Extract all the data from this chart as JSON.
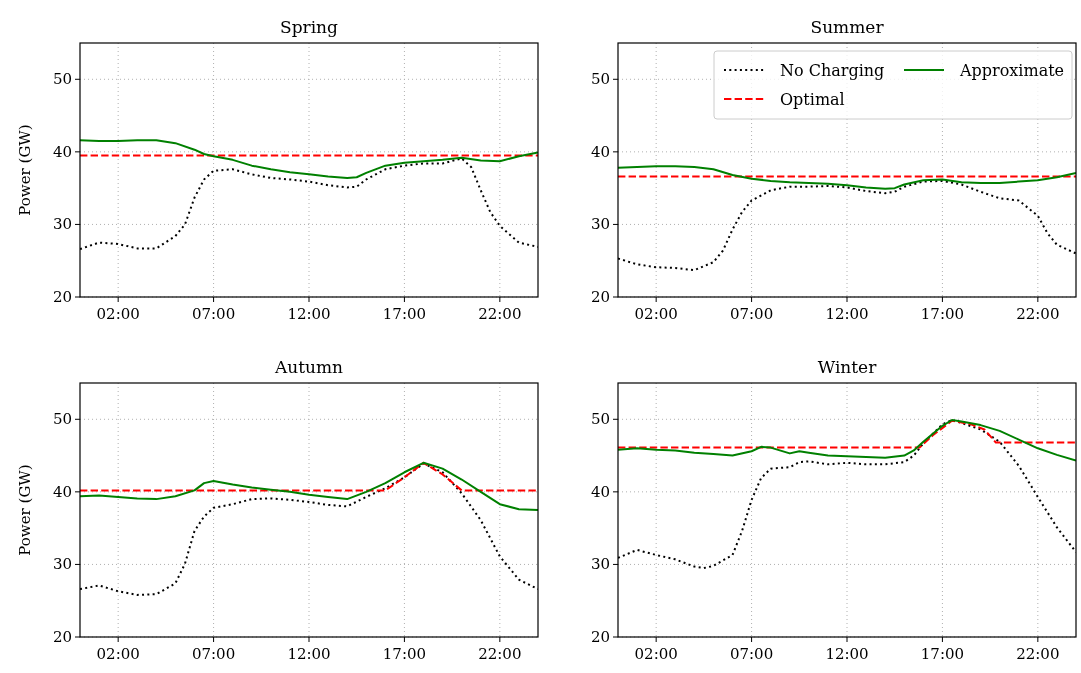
{
  "chart_data": [
    {
      "type": "line",
      "title": "Spring",
      "ylabel": "Power (GW)",
      "xlim": [
        0,
        24
      ],
      "ylim": [
        20,
        55
      ],
      "xticks": [
        {
          "value": 2,
          "label": "02:00"
        },
        {
          "value": 7,
          "label": "07:00"
        },
        {
          "value": 12,
          "label": "12:00"
        },
        {
          "value": 17,
          "label": "17:00"
        },
        {
          "value": 22,
          "label": "22:00"
        }
      ],
      "yticks": [
        20,
        30,
        40,
        50
      ],
      "grid": true,
      "legend": false,
      "series": [
        {
          "color": "#000000",
          "line_style": "dotted",
          "x": [
            0,
            1,
            2,
            3,
            4,
            5,
            5.5,
            6,
            6.5,
            7,
            8,
            9,
            10,
            11,
            12,
            13,
            14,
            14.5,
            15,
            16,
            17,
            18,
            19,
            20,
            20.5,
            21,
            21.5,
            22,
            23,
            24
          ],
          "values": [
            26.6,
            27.5,
            27.3,
            26.7,
            26.7,
            28.4,
            30,
            33.7,
            36.2,
            37.4,
            37.6,
            36.9,
            36.4,
            36.2,
            35.9,
            35.4,
            35.1,
            35.2,
            36.2,
            37.6,
            38.1,
            38.4,
            38.4,
            39.1,
            37.9,
            34.7,
            31.7,
            29.8,
            27.5,
            26.9
          ]
        },
        {
          "color": "#ff0000",
          "line_style": "dashed",
          "x": [
            0,
            24
          ],
          "values": [
            39.5,
            39.5
          ]
        },
        {
          "color": "#008000",
          "line_style": "solid",
          "x": [
            0,
            1,
            2,
            3,
            4,
            5,
            6,
            6.5,
            7,
            8,
            9,
            10,
            11,
            12,
            13,
            14,
            14.5,
            15,
            16,
            17,
            18,
            19,
            20,
            21,
            22,
            23,
            24
          ],
          "values": [
            41.6,
            41.5,
            41.5,
            41.6,
            41.6,
            41.2,
            40.3,
            39.7,
            39.4,
            38.9,
            38.1,
            37.6,
            37.2,
            36.9,
            36.6,
            36.4,
            36.5,
            37.1,
            38.1,
            38.5,
            38.7,
            38.9,
            39.2,
            38.8,
            38.7,
            39.4,
            39.9
          ]
        }
      ]
    },
    {
      "type": "line",
      "title": "Summer",
      "xlim": [
        0,
        24
      ],
      "ylim": [
        20,
        55
      ],
      "xticks": [
        {
          "value": 2,
          "label": "02:00"
        },
        {
          "value": 7,
          "label": "07:00"
        },
        {
          "value": 12,
          "label": "12:00"
        },
        {
          "value": 17,
          "label": "17:00"
        },
        {
          "value": 22,
          "label": "22:00"
        }
      ],
      "yticks": [
        20,
        30,
        40,
        50
      ],
      "grid": true,
      "legend": "top right",
      "series": [
        {
          "name": "No Charging",
          "color": "#000000",
          "line_style": "dotted",
          "x": [
            0,
            1,
            2,
            3,
            4,
            5,
            5.5,
            6,
            6.5,
            7,
            8,
            9,
            10,
            11,
            12,
            13,
            14,
            14.5,
            15,
            16,
            17,
            18,
            19,
            20,
            21,
            22,
            22.5,
            23,
            24
          ],
          "values": [
            25.3,
            24.5,
            24.1,
            24.0,
            23.7,
            24.8,
            26.4,
            29.3,
            31.7,
            33.3,
            34.7,
            35.2,
            35.2,
            35.3,
            35.1,
            34.6,
            34.3,
            34.5,
            35.2,
            35.9,
            36.0,
            35.5,
            34.5,
            33.6,
            33.3,
            31.2,
            28.8,
            27.2,
            26.0
          ]
        },
        {
          "name": "Optimal",
          "color": "#ff0000",
          "line_style": "dashed",
          "x": [
            0,
            24
          ],
          "values": [
            36.6,
            36.6
          ]
        },
        {
          "name": "Approximate",
          "color": "#008000",
          "line_style": "solid",
          "x": [
            0,
            1,
            2,
            3,
            4,
            5,
            6,
            7,
            8,
            9,
            10,
            11,
            12,
            13,
            14,
            14.5,
            15,
            16,
            17,
            18,
            19,
            20,
            21,
            22,
            23,
            24
          ],
          "values": [
            37.8,
            37.9,
            38.0,
            38.0,
            37.9,
            37.6,
            36.8,
            36.3,
            36.0,
            35.8,
            35.7,
            35.6,
            35.4,
            35.1,
            34.9,
            35.0,
            35.5,
            36.1,
            36.2,
            35.8,
            35.7,
            35.7,
            35.9,
            36.1,
            36.5,
            37.1
          ]
        }
      ]
    },
    {
      "type": "line",
      "title": "Autumn",
      "ylabel": "Power (GW)",
      "xlim": [
        0,
        24
      ],
      "ylim": [
        20,
        55
      ],
      "xticks": [
        {
          "value": 2,
          "label": "02:00"
        },
        {
          "value": 7,
          "label": "07:00"
        },
        {
          "value": 12,
          "label": "12:00"
        },
        {
          "value": 17,
          "label": "17:00"
        },
        {
          "value": 22,
          "label": "22:00"
        }
      ],
      "yticks": [
        20,
        30,
        40,
        50
      ],
      "grid": true,
      "legend": false,
      "series": [
        {
          "color": "#000000",
          "line_style": "dotted",
          "x": [
            0,
            1,
            2,
            3,
            4,
            5,
            5.5,
            6,
            6.5,
            7,
            8,
            9,
            10,
            11,
            12,
            13,
            14,
            15,
            16,
            17,
            18,
            19,
            20,
            21,
            22,
            23,
            24
          ],
          "values": [
            26.6,
            27.1,
            26.3,
            25.8,
            25.9,
            27.4,
            30.1,
            34.6,
            36.6,
            37.8,
            38.3,
            39.0,
            39.1,
            38.9,
            38.6,
            38.2,
            38.0,
            39.3,
            40.5,
            42.0,
            43.9,
            42.7,
            39.8,
            36.1,
            31.1,
            27.9,
            26.6
          ]
        },
        {
          "color": "#ff0000",
          "line_style": "dashed",
          "x": [
            0,
            16,
            17,
            18,
            19,
            20,
            24
          ],
          "values": [
            40.2,
            40.2,
            42.0,
            44.0,
            42.4,
            40.2,
            40.2
          ]
        },
        {
          "color": "#008000",
          "line_style": "solid",
          "x": [
            0,
            1,
            2,
            3,
            4,
            5,
            6,
            6.5,
            7,
            8,
            9,
            10,
            11,
            12,
            13,
            14,
            15,
            16,
            17,
            18,
            19,
            20,
            21,
            22,
            23,
            24
          ],
          "values": [
            39.4,
            39.5,
            39.3,
            39.1,
            39.0,
            39.4,
            40.2,
            41.2,
            41.5,
            41.0,
            40.6,
            40.3,
            40.0,
            39.6,
            39.3,
            39.0,
            40.0,
            41.2,
            42.7,
            44.0,
            43.2,
            41.7,
            40.0,
            38.3,
            37.6,
            37.5
          ]
        }
      ]
    },
    {
      "type": "line",
      "title": "Winter",
      "xlim": [
        0,
        24
      ],
      "ylim": [
        20,
        55
      ],
      "xticks": [
        {
          "value": 2,
          "label": "02:00"
        },
        {
          "value": 7,
          "label": "07:00"
        },
        {
          "value": 12,
          "label": "12:00"
        },
        {
          "value": 17,
          "label": "17:00"
        },
        {
          "value": 22,
          "label": "22:00"
        }
      ],
      "yticks": [
        20,
        30,
        40,
        50
      ],
      "grid": true,
      "legend": false,
      "series": [
        {
          "color": "#000000",
          "line_style": "dotted",
          "x": [
            0,
            1,
            2,
            3,
            4,
            4.5,
            5,
            6,
            6.5,
            7,
            7.5,
            8,
            9,
            9.5,
            10,
            11,
            12,
            13,
            14,
            15,
            15.5,
            16,
            17,
            17.5,
            18,
            19,
            20,
            21,
            22,
            23,
            24
          ],
          "values": [
            30.9,
            32.0,
            31.3,
            30.7,
            29.7,
            29.5,
            29.8,
            31.3,
            34.6,
            38.9,
            41.9,
            43.2,
            43.4,
            44.1,
            44.2,
            43.8,
            44.0,
            43.8,
            43.8,
            44.1,
            45.0,
            46.7,
            49.3,
            49.9,
            49.5,
            48.6,
            46.9,
            43.6,
            39.3,
            35.1,
            31.7
          ]
        },
        {
          "color": "#ff0000",
          "line_style": "dashed",
          "x": [
            0,
            15.8,
            16.5,
            17.5,
            18.5,
            19.2,
            19.8,
            24
          ],
          "values": [
            46.1,
            46.1,
            47.8,
            49.8,
            49.3,
            48.6,
            46.8,
            46.8
          ]
        },
        {
          "color": "#008000",
          "line_style": "solid",
          "x": [
            0,
            1,
            2,
            3,
            4,
            5,
            6,
            7,
            7.5,
            8,
            9,
            9.5,
            10,
            11,
            12,
            13,
            14,
            15,
            15.5,
            16,
            17,
            17.5,
            18,
            19,
            20,
            21,
            22,
            23,
            24
          ],
          "values": [
            45.8,
            46.0,
            45.8,
            45.7,
            45.4,
            45.2,
            45.0,
            45.6,
            46.2,
            46.1,
            45.3,
            45.6,
            45.4,
            45.0,
            44.9,
            44.8,
            44.7,
            45.0,
            45.7,
            46.9,
            49.1,
            49.9,
            49.7,
            49.2,
            48.4,
            47.2,
            46.0,
            45.1,
            44.3
          ]
        }
      ]
    }
  ]
}
